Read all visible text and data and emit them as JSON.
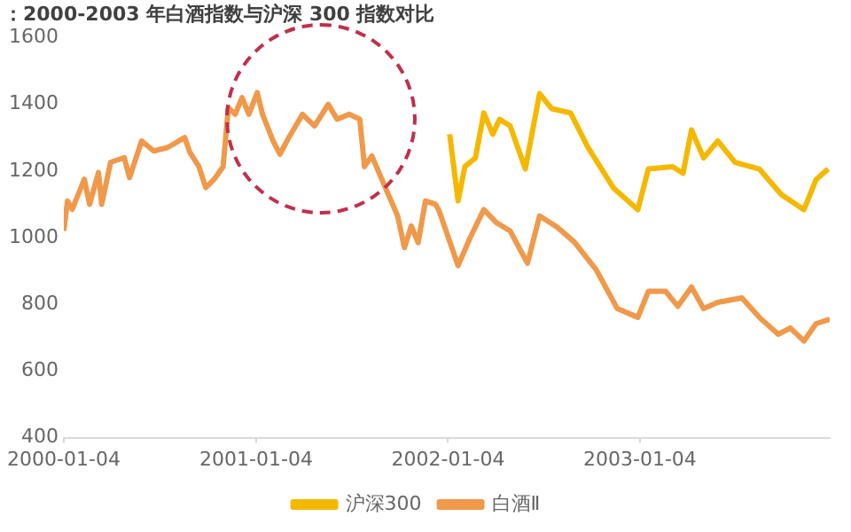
{
  "chart_data": {
    "type": "line",
    "title": "：2000-2003 年白酒指数与沪深 300 指数对比",
    "xlim": [
      "2000-01-04",
      "2003-12-31"
    ],
    "xticks": [
      "2000-01-04",
      "2001-01-04",
      "2002-01-04",
      "2003-01-04"
    ],
    "ylim": [
      400,
      1600
    ],
    "yticks": [
      400,
      600,
      800,
      1000,
      1200,
      1400,
      1600
    ],
    "grid": false,
    "legend": "bottom",
    "marker": "none",
    "line_style": "solid",
    "series": [
      {
        "name": "沪深300",
        "color": "#f5b800",
        "x": [
          "2002-01-07",
          "2002-01-23",
          "2002-02-05",
          "2002-02-25",
          "2002-03-13",
          "2002-03-30",
          "2002-04-12",
          "2002-05-02",
          "2002-05-31",
          "2002-06-27",
          "2002-07-20",
          "2002-08-25",
          "2002-09-27",
          "2002-11-15",
          "2002-12-31",
          "2003-01-20",
          "2003-03-07",
          "2003-03-27",
          "2003-04-12",
          "2003-05-05",
          "2003-06-01",
          "2003-07-04",
          "2003-08-19",
          "2003-09-30",
          "2003-11-12",
          "2003-12-05",
          "2003-12-28"
        ],
        "values": [
          1310,
          1110,
          1213,
          1239,
          1374,
          1310,
          1355,
          1335,
          1206,
          1432,
          1387,
          1374,
          1271,
          1148,
          1084,
          1206,
          1213,
          1193,
          1323,
          1239,
          1290,
          1226,
          1206,
          1129,
          1084,
          1174,
          1206
        ]
      },
      {
        "name": "白酒Ⅱ",
        "color": "#f0994a",
        "x": [
          "2000-01-04",
          "2000-01-11",
          "2000-01-20",
          "2000-02-12",
          "2000-02-22",
          "2000-03-10",
          "2000-03-16",
          "2000-04-02",
          "2000-04-28",
          "2000-05-08",
          "2000-05-31",
          "2000-06-23",
          "2000-07-19",
          "2000-08-21",
          "2000-08-31",
          "2000-09-17",
          "2000-09-30",
          "2000-10-16",
          "2000-11-02",
          "2000-11-12",
          "2000-11-25",
          "2000-12-08",
          "2000-12-21",
          "2001-01-06",
          "2001-01-16",
          "2001-02-05",
          "2001-02-18",
          "2001-03-07",
          "2001-04-02",
          "2001-04-25",
          "2001-05-21",
          "2001-06-07",
          "2001-06-30",
          "2001-07-20",
          "2001-07-29",
          "2001-08-12",
          "2001-09-04",
          "2001-09-30",
          "2001-10-13",
          "2001-10-26",
          "2001-11-08",
          "2001-11-22",
          "2001-12-11",
          "2001-12-18",
          "2002-01-23",
          "2002-02-15",
          "2002-03-13",
          "2002-04-06",
          "2002-05-02",
          "2002-06-04",
          "2002-06-27",
          "2002-07-30",
          "2002-09-01",
          "2002-10-13",
          "2002-11-22",
          "2002-12-31",
          "2003-01-20",
          "2003-02-22",
          "2003-03-17",
          "2003-04-12",
          "2003-05-05",
          "2003-06-01",
          "2003-07-17",
          "2003-08-19",
          "2003-09-24",
          "2003-10-17",
          "2003-11-12",
          "2003-12-05",
          "2003-12-31"
        ],
        "values": [
          1020,
          1110,
          1085,
          1175,
          1100,
          1195,
          1100,
          1226,
          1240,
          1180,
          1290,
          1260,
          1270,
          1300,
          1255,
          1213,
          1150,
          1175,
          1213,
          1390,
          1370,
          1420,
          1370,
          1435,
          1370,
          1290,
          1250,
          1300,
          1370,
          1335,
          1400,
          1355,
          1370,
          1355,
          1213,
          1245,
          1160,
          1065,
          970,
          1035,
          985,
          1110,
          1100,
          1080,
          916,
          1000,
          1084,
          1045,
          1020,
          923,
          1065,
          1032,
          987,
          903,
          787,
          761,
          839,
          839,
          794,
          852,
          787,
          806,
          819,
          761,
          710,
          729,
          690,
          742,
          755
        ]
      }
    ]
  }
}
